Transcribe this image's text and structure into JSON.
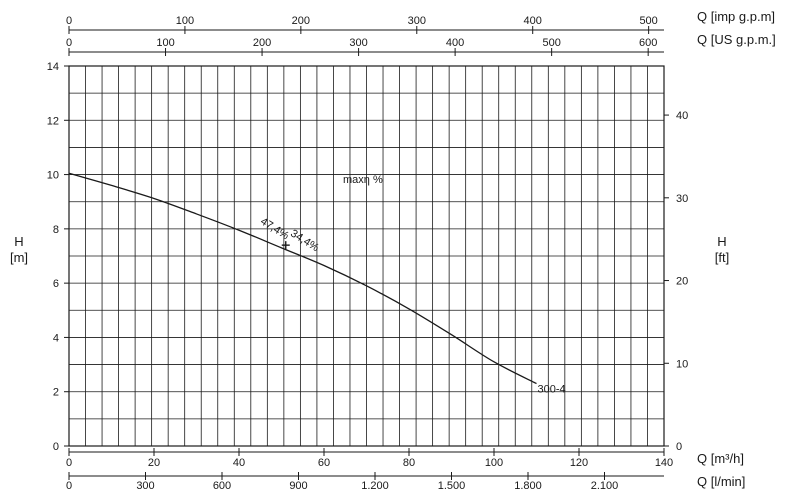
{
  "chart_data": {
    "type": "line",
    "bottom_axis_1": {
      "label": "Q [m³/h]",
      "range": [
        0,
        140
      ],
      "ticks": [
        0,
        20,
        40,
        60,
        80,
        100,
        120,
        140
      ]
    },
    "bottom_axis_2": {
      "label": "Q [l/min]",
      "ticks": [
        0,
        300,
        600,
        900,
        1200,
        1500,
        1800,
        2100
      ],
      "tick_labels": [
        "0",
        "300",
        "600",
        "900",
        "1.200",
        "1.500",
        "1.800",
        "2.100"
      ]
    },
    "top_axis_1": {
      "label": "Q [imp g.p.m]",
      "ticks": [
        0,
        100,
        200,
        300,
        400,
        500
      ]
    },
    "top_axis_2": {
      "label": "Q [US g.p.m.]",
      "ticks": [
        0,
        100,
        200,
        300,
        400,
        500,
        600
      ]
    },
    "left_axis": {
      "label_line1": "H",
      "label_line2": "[m]",
      "range": [
        0,
        14
      ],
      "ticks": [
        0,
        2,
        4,
        6,
        8,
        10,
        12,
        14
      ]
    },
    "right_axis": {
      "label_line1": "H",
      "label_line2": "[ft]",
      "ticks": [
        0,
        10,
        20,
        30,
        40
      ]
    },
    "grid": true,
    "series": [
      {
        "name": "300-4",
        "x": [
          0,
          10,
          20,
          30,
          40,
          50,
          60,
          70,
          80,
          90,
          100,
          110
        ],
        "y": [
          10.05,
          9.6,
          9.12,
          8.55,
          7.95,
          7.3,
          6.65,
          5.9,
          5.05,
          4.1,
          3.1,
          2.3
        ]
      }
    ],
    "bep_marker": {
      "x": 51,
      "y": 7.4
    },
    "annotations": {
      "max_eff": "maxη %",
      "eff_left": "47,4%",
      "eff_right": "34,4%"
    }
  }
}
